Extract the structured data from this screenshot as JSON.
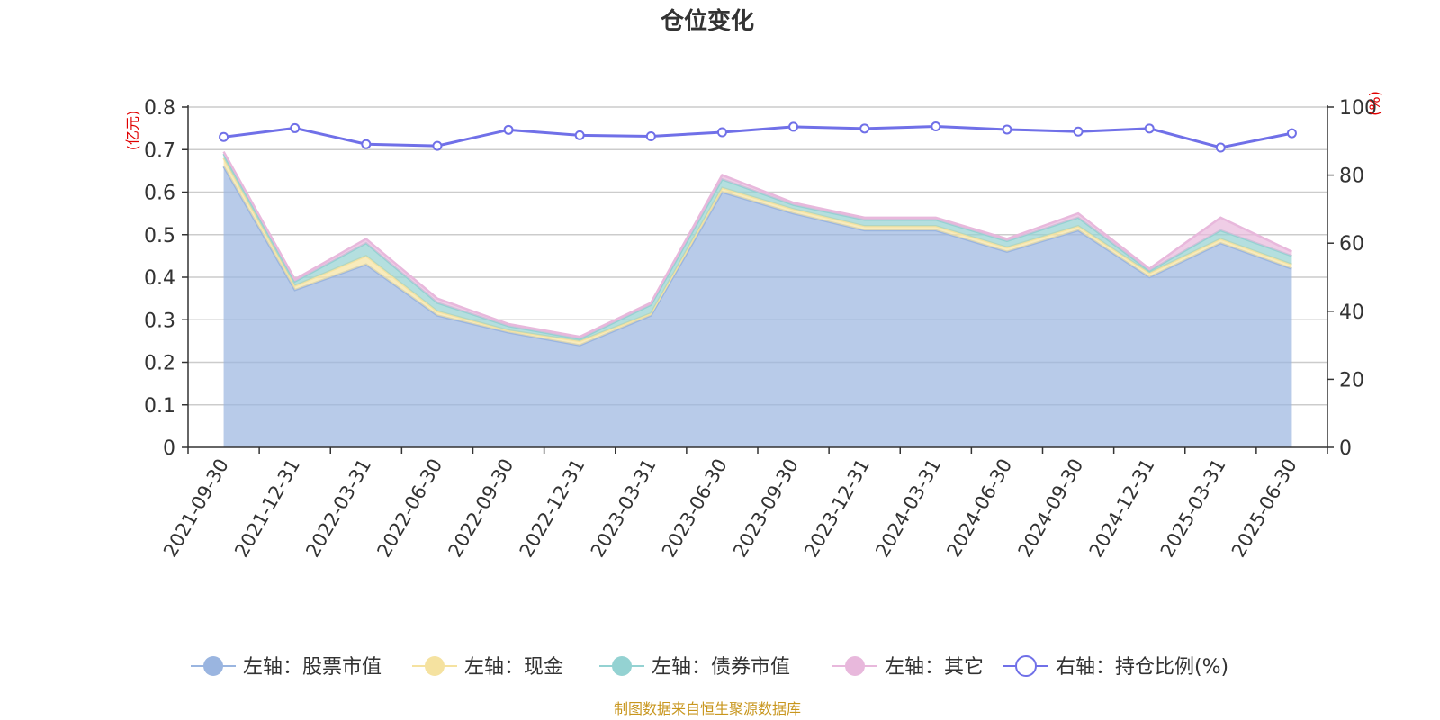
{
  "chart_data": {
    "type": "area",
    "title": "仓位变化",
    "left_axis_unit": "(亿元)",
    "right_axis_unit": "(%)",
    "categories": [
      "2021-09-30",
      "2021-12-31",
      "2022-03-31",
      "2022-06-30",
      "2022-09-30",
      "2022-12-31",
      "2023-03-31",
      "2023-06-30",
      "2023-09-30",
      "2023-12-31",
      "2024-03-31",
      "2024-06-30",
      "2024-09-30",
      "2024-12-31",
      "2025-03-31",
      "2025-06-30"
    ],
    "left_ylim": [
      0,
      0.8
    ],
    "left_yticks": [
      "0",
      "0.1",
      "0.2",
      "0.3",
      "0.4",
      "0.5",
      "0.6",
      "0.7",
      "0.8"
    ],
    "right_ylim": [
      0,
      100
    ],
    "right_yticks": [
      "0",
      "20",
      "40",
      "60",
      "80",
      "100"
    ],
    "grid": true,
    "stacked": true,
    "legend_position": "bottom",
    "series": [
      {
        "name": "左轴：股票市值",
        "axis": "left",
        "kind": "area",
        "color": "#9ab5e0",
        "values": [
          0.66,
          0.37,
          0.43,
          0.31,
          0.27,
          0.24,
          0.31,
          0.6,
          0.55,
          0.51,
          0.51,
          0.46,
          0.51,
          0.4,
          0.48,
          0.42
        ]
      },
      {
        "name": "左轴：现金",
        "axis": "left",
        "kind": "area",
        "color": "#f5e2a0",
        "values": [
          0.02,
          0.01,
          0.02,
          0.01,
          0.005,
          0.01,
          0.005,
          0.01,
          0.01,
          0.01,
          0.01,
          0.01,
          0.01,
          0.01,
          0.01,
          0.01
        ]
      },
      {
        "name": "左轴：债券市值",
        "axis": "left",
        "kind": "area",
        "color": "#94d2d2",
        "values": [
          0.01,
          0.01,
          0.03,
          0.02,
          0.01,
          0.005,
          0.02,
          0.02,
          0.01,
          0.015,
          0.015,
          0.015,
          0.02,
          0.005,
          0.02,
          0.02
        ]
      },
      {
        "name": "左轴：其它",
        "axis": "left",
        "kind": "area",
        "color": "#e8b8dc",
        "values": [
          0.005,
          0.005,
          0.01,
          0.01,
          0.005,
          0.005,
          0.005,
          0.01,
          0.005,
          0.005,
          0.005,
          0.005,
          0.01,
          0.005,
          0.03,
          0.01
        ]
      },
      {
        "name": "右轴：持仓比例(%)",
        "axis": "right",
        "kind": "line",
        "color": "#7070e8",
        "values": [
          91.2,
          93.8,
          89.1,
          88.6,
          93.3,
          91.7,
          91.4,
          92.6,
          94.2,
          93.7,
          94.3,
          93.4,
          92.8,
          93.7,
          88.1,
          92.3
        ]
      }
    ],
    "source_note": "制图数据来自恒生聚源数据库"
  }
}
